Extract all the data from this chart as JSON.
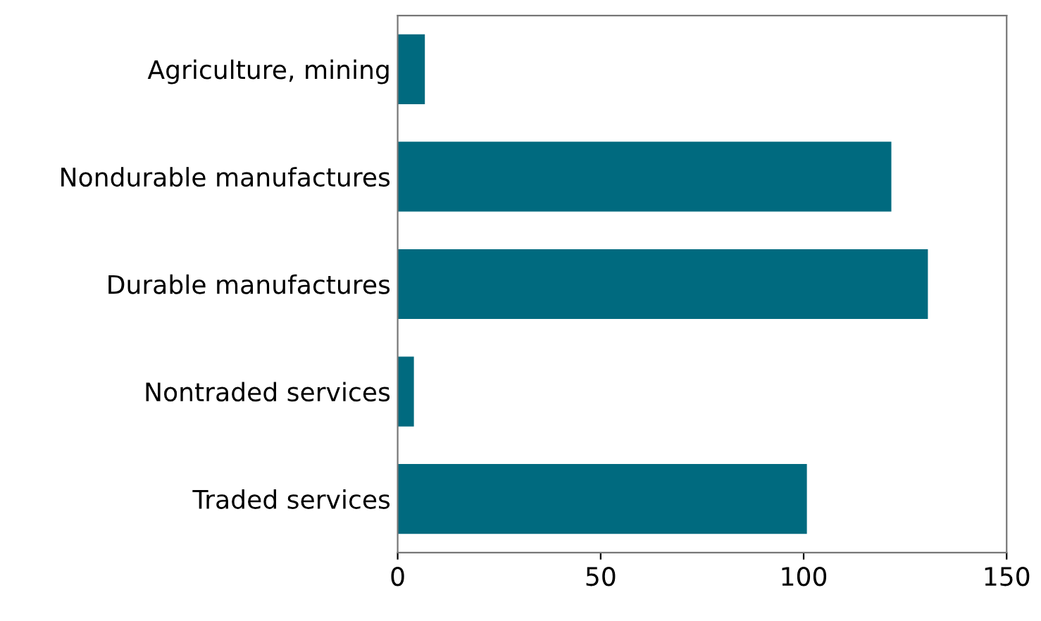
{
  "chart_data": {
    "type": "bar",
    "orientation": "horizontal",
    "categories": [
      "Agriculture, mining",
      "Nondurable manufactures",
      "Durable manufactures",
      "Nontraded services",
      "Traded services"
    ],
    "values": [
      6.7,
      121.6,
      130.6,
      4,
      100.8
    ],
    "color": "#006a7f",
    "xlim": [
      0,
      150
    ],
    "xticks": [
      0,
      50,
      100,
      150
    ],
    "grid": false
  }
}
